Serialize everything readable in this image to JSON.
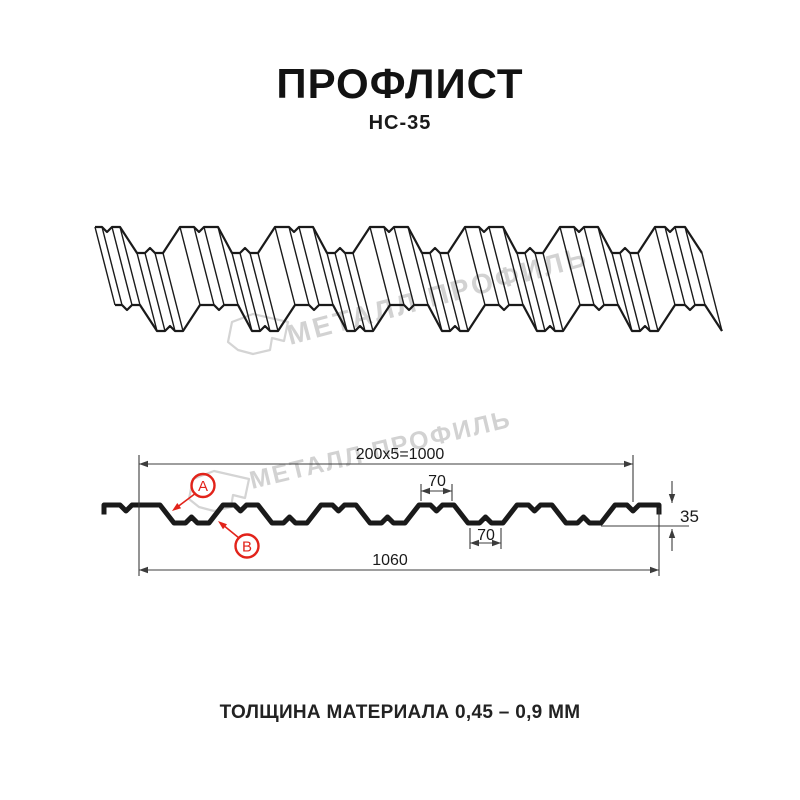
{
  "header": {
    "title": "ПРОФЛИСТ",
    "subtitle": "НС-35"
  },
  "footer": {
    "text": "ТОЛЩИНА МАТЕРИАЛА 0,45 – 0,9 ММ"
  },
  "watermark": {
    "text": "МЕТАЛЛ ПРОФИЛЬ"
  },
  "diagram": {
    "dimensions": {
      "coverage_width": "200x5=1000",
      "rib_top_width": "70",
      "rib_bottom_width": "70",
      "profile_height": "35",
      "overall_width": "1060"
    },
    "callouts": {
      "a": "A",
      "b": "B"
    },
    "colors": {
      "line": "#1a1a1a",
      "dim_line": "#3c3c3c",
      "callout_red": "#e2231a",
      "watermark_gray": "#d2d2d2"
    }
  }
}
